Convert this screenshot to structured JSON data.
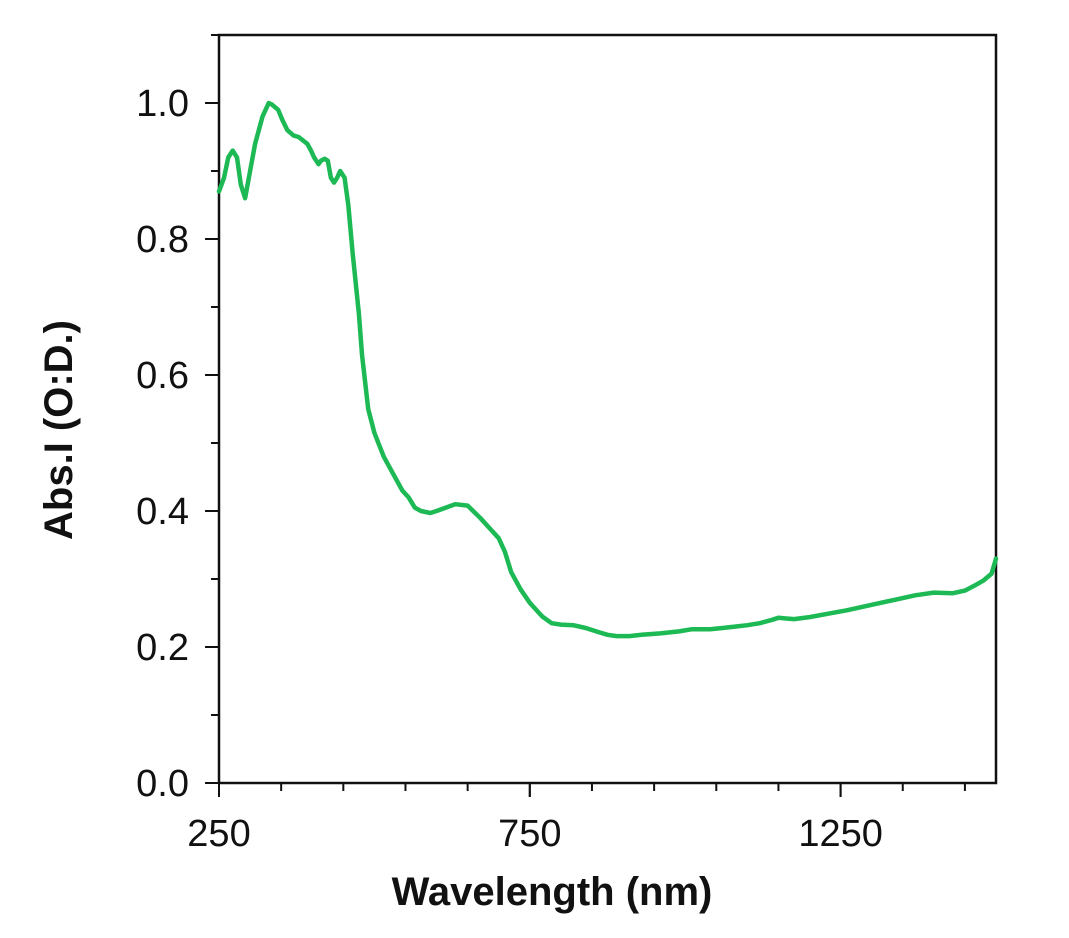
{
  "chart_data": {
    "type": "line",
    "title": "",
    "xlabel": "Wavelength (nm)",
    "ylabel": "Abs.I (O:D.)",
    "xlim": [
      250,
      1500
    ],
    "ylim": [
      0.0,
      1.1
    ],
    "x_major_ticks": [
      250,
      750,
      1250
    ],
    "x_tick_labels": [
      "250",
      "750",
      "1250"
    ],
    "x_minor_step": 100,
    "y_major_ticks": [
      0.0,
      0.2,
      0.4,
      0.6,
      0.8,
      1.0
    ],
    "y_tick_labels": [
      "0.0",
      "0.2",
      "0.4",
      "0.6",
      "0.8",
      "1.0"
    ],
    "y_minor_step": 0.1,
    "grid": false,
    "legend": "none",
    "series": [
      {
        "name": "absorbance",
        "color": "#1db954",
        "x": [
          250,
          258,
          265,
          272,
          279,
          285,
          292,
          300,
          308,
          314,
          320,
          325,
          330,
          335,
          345,
          352,
          360,
          370,
          378,
          385,
          392,
          398,
          403,
          410,
          414,
          420,
          425,
          430,
          435,
          440,
          445,
          452,
          458,
          465,
          475,
          480,
          490,
          500,
          515,
          530,
          545,
          555,
          565,
          575,
          590,
          600,
          615,
          630,
          650,
          670,
          685,
          700,
          710,
          720,
          735,
          750,
          760,
          770,
          785,
          800,
          820,
          840,
          860,
          875,
          890,
          910,
          930,
          960,
          990,
          1010,
          1040,
          1060,
          1080,
          1100,
          1120,
          1140,
          1150,
          1160,
          1175,
          1200,
          1230,
          1260,
          1300,
          1340,
          1370,
          1400,
          1430,
          1450,
          1465,
          1480,
          1493,
          1500
        ],
        "y": [
          0.87,
          0.89,
          0.92,
          0.93,
          0.92,
          0.88,
          0.86,
          0.9,
          0.94,
          0.96,
          0.98,
          0.99,
          1.0,
          0.998,
          0.99,
          0.975,
          0.96,
          0.952,
          0.95,
          0.945,
          0.94,
          0.93,
          0.92,
          0.91,
          0.915,
          0.918,
          0.915,
          0.89,
          0.883,
          0.89,
          0.9,
          0.89,
          0.85,
          0.78,
          0.69,
          0.63,
          0.55,
          0.515,
          0.48,
          0.455,
          0.43,
          0.42,
          0.405,
          0.4,
          0.397,
          0.4,
          0.405,
          0.41,
          0.408,
          0.39,
          0.375,
          0.36,
          0.34,
          0.31,
          0.285,
          0.265,
          0.255,
          0.245,
          0.235,
          0.233,
          0.232,
          0.228,
          0.222,
          0.218,
          0.216,
          0.216,
          0.218,
          0.22,
          0.223,
          0.226,
          0.226,
          0.228,
          0.23,
          0.232,
          0.235,
          0.24,
          0.243,
          0.242,
          0.241,
          0.244,
          0.249,
          0.254,
          0.262,
          0.27,
          0.276,
          0.28,
          0.279,
          0.283,
          0.29,
          0.298,
          0.308,
          0.33
        ]
      }
    ]
  }
}
